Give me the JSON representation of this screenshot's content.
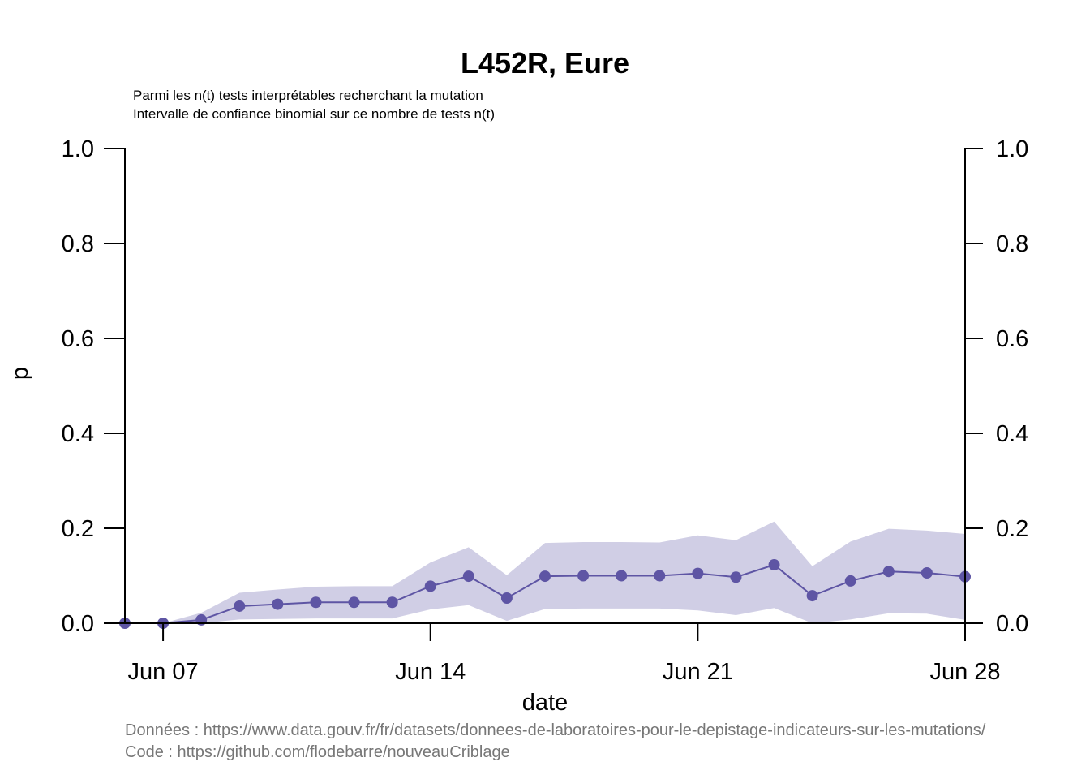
{
  "chart_data": {
    "type": "line",
    "title": "L452R, Eure",
    "subtitle_lines": [
      "Parmi les n(t) tests interprétables recherchant la mutation",
      "Intervalle de confiance binomial sur ce nombre de tests n(t)"
    ],
    "xlabel": "date",
    "ylabel": "p",
    "ylim": [
      0,
      1
    ],
    "y_ticks": [
      "0.0",
      "0.2",
      "0.4",
      "0.6",
      "0.8",
      "1.0"
    ],
    "y_tick_values": [
      0,
      0.2,
      0.4,
      0.6,
      0.8,
      1.0
    ],
    "x_ticks": [
      "Jun 07",
      "Jun 14",
      "Jun 21",
      "Jun 28"
    ],
    "x_tick_values": [
      "2021-06-07",
      "2021-06-14",
      "2021-06-21",
      "2021-06-28"
    ],
    "xlim": [
      "2021-06-06",
      "2021-06-28"
    ],
    "x": [
      "2021-06-06",
      "2021-06-07",
      "2021-06-08",
      "2021-06-09",
      "2021-06-10",
      "2021-06-11",
      "2021-06-12",
      "2021-06-13",
      "2021-06-14",
      "2021-06-15",
      "2021-06-16",
      "2021-06-17",
      "2021-06-18",
      "2021-06-19",
      "2021-06-20",
      "2021-06-21",
      "2021-06-22",
      "2021-06-23",
      "2021-06-24",
      "2021-06-25",
      "2021-06-26",
      "2021-06-27",
      "2021-06-28"
    ],
    "series": [
      {
        "values": [
          0.0,
          0.0,
          0.007,
          0.036,
          0.04,
          0.044,
          0.044,
          0.044,
          0.078,
          0.099,
          0.053,
          0.099,
          0.1,
          0.1,
          0.1,
          0.105,
          0.097,
          0.123,
          0.058,
          0.089,
          0.109,
          0.106,
          0.098
        ],
        "ci_low": [
          0.0,
          0.0,
          0.0,
          0.008,
          0.009,
          0.01,
          0.01,
          0.01,
          0.029,
          0.038,
          0.005,
          0.03,
          0.031,
          0.031,
          0.031,
          0.027,
          0.017,
          0.032,
          0.0,
          0.008,
          0.021,
          0.02,
          0.007
        ],
        "ci_high": [
          0.0,
          0.0,
          0.022,
          0.064,
          0.071,
          0.077,
          0.078,
          0.078,
          0.128,
          0.16,
          0.101,
          0.169,
          0.171,
          0.171,
          0.17,
          0.185,
          0.175,
          0.214,
          0.12,
          0.172,
          0.199,
          0.195,
          0.188
        ]
      }
    ],
    "colors": {
      "line": "#5e55a4",
      "band": "#d0ceE5"
    }
  },
  "footer": {
    "line1": "Données : https://www.data.gouv.fr/fr/datasets/donnees-de-laboratoires-pour-le-depistage-indicateurs-sur-les-mutations/",
    "line2": "Code : https://github.com/flodebarre/nouveauCriblage"
  }
}
